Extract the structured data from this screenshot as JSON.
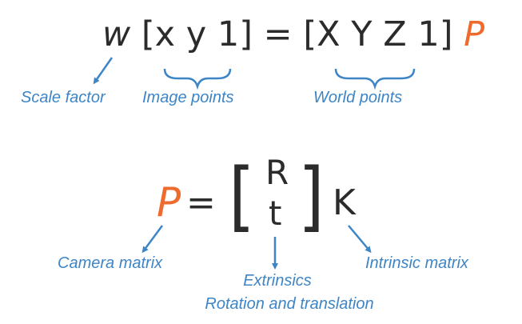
{
  "colors": {
    "accent": "#ee6a2d",
    "label": "#3d85c6",
    "text": "#2b2b2b"
  },
  "equation1": {
    "scale": "w",
    "image_vector": "[x y 1]",
    "equals": "=",
    "world_vector": "[X Y Z 1]",
    "matrix": "P"
  },
  "equation2": {
    "lhs": "P",
    "equals": "=",
    "top_entry": "R",
    "bottom_entry": "t",
    "intrinsic": "K"
  },
  "labels": {
    "scale_factor": "Scale factor",
    "image_points": "Image points",
    "world_points": "World points",
    "camera_matrix": "Camera matrix",
    "extrinsics": "Extrinsics",
    "rotation_translation": "Rotation and translation",
    "intrinsic_matrix": "Intrinsic matrix"
  }
}
